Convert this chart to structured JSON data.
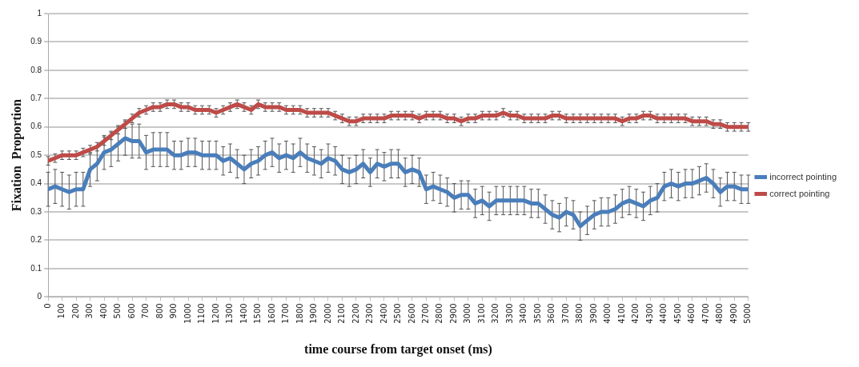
{
  "chart_data": {
    "type": "line",
    "xlabel": "time course from target onset (ms)",
    "ylabel": "Fixation  Proportion",
    "x": [
      0,
      50,
      100,
      150,
      200,
      250,
      300,
      350,
      400,
      450,
      500,
      550,
      600,
      650,
      700,
      750,
      800,
      850,
      900,
      950,
      1000,
      1050,
      1100,
      1150,
      1200,
      1250,
      1300,
      1350,
      1400,
      1450,
      1500,
      1550,
      1600,
      1650,
      1700,
      1750,
      1800,
      1850,
      1900,
      1950,
      2000,
      2050,
      2100,
      2150,
      2200,
      2250,
      2300,
      2350,
      2400,
      2450,
      2500,
      2550,
      2600,
      2650,
      2700,
      2750,
      2800,
      2850,
      2900,
      2950,
      3000,
      3050,
      3100,
      3150,
      3200,
      3250,
      3300,
      3350,
      3400,
      3450,
      3500,
      3550,
      3600,
      3650,
      3700,
      3750,
      3800,
      3850,
      3900,
      3950,
      4000,
      4050,
      4100,
      4150,
      4200,
      4250,
      4300,
      4350,
      4400,
      4450,
      4500,
      4550,
      4600,
      4650,
      4700,
      4750,
      4800,
      4850,
      4900,
      4950,
      5000
    ],
    "series": [
      {
        "name": "incorrect pointing",
        "color": "#4a7ebb",
        "values": [
          0.38,
          0.39,
          0.38,
          0.37,
          0.38,
          0.38,
          0.45,
          0.47,
          0.51,
          0.52,
          0.54,
          0.56,
          0.55,
          0.55,
          0.51,
          0.52,
          0.52,
          0.52,
          0.5,
          0.5,
          0.51,
          0.51,
          0.5,
          0.5,
          0.5,
          0.48,
          0.49,
          0.47,
          0.45,
          0.47,
          0.48,
          0.5,
          0.51,
          0.49,
          0.5,
          0.49,
          0.51,
          0.49,
          0.48,
          0.47,
          0.49,
          0.48,
          0.45,
          0.44,
          0.45,
          0.47,
          0.44,
          0.47,
          0.46,
          0.47,
          0.47,
          0.44,
          0.45,
          0.44,
          0.38,
          0.39,
          0.38,
          0.37,
          0.35,
          0.36,
          0.36,
          0.33,
          0.34,
          0.32,
          0.34,
          0.34,
          0.34,
          0.34,
          0.34,
          0.33,
          0.33,
          0.31,
          0.29,
          0.28,
          0.3,
          0.29,
          0.25,
          0.27,
          0.29,
          0.3,
          0.3,
          0.31,
          0.33,
          0.34,
          0.33,
          0.32,
          0.34,
          0.35,
          0.39,
          0.4,
          0.39,
          0.4,
          0.4,
          0.41,
          0.42,
          0.4,
          0.37,
          0.39,
          0.39,
          0.38,
          0.38
        ],
        "errors": [
          0.06,
          0.06,
          0.06,
          0.06,
          0.06,
          0.06,
          0.06,
          0.06,
          0.06,
          0.06,
          0.06,
          0.06,
          0.06,
          0.06,
          0.06,
          0.06,
          0.06,
          0.06,
          0.05,
          0.05,
          0.05,
          0.05,
          0.05,
          0.05,
          0.05,
          0.05,
          0.05,
          0.05,
          0.05,
          0.05,
          0.05,
          0.05,
          0.05,
          0.05,
          0.05,
          0.05,
          0.05,
          0.05,
          0.05,
          0.05,
          0.05,
          0.05,
          0.05,
          0.05,
          0.05,
          0.05,
          0.05,
          0.05,
          0.05,
          0.05,
          0.05,
          0.05,
          0.05,
          0.05,
          0.05,
          0.05,
          0.05,
          0.05,
          0.05,
          0.05,
          0.05,
          0.05,
          0.05,
          0.05,
          0.05,
          0.05,
          0.05,
          0.05,
          0.05,
          0.05,
          0.05,
          0.05,
          0.05,
          0.05,
          0.05,
          0.05,
          0.05,
          0.05,
          0.05,
          0.05,
          0.05,
          0.05,
          0.05,
          0.05,
          0.05,
          0.05,
          0.05,
          0.05,
          0.05,
          0.05,
          0.05,
          0.05,
          0.05,
          0.05,
          0.05,
          0.05,
          0.05,
          0.05,
          0.05,
          0.05,
          0.05
        ]
      },
      {
        "name": "correct pointing",
        "color": "#be4b48",
        "values": [
          0.48,
          0.49,
          0.5,
          0.5,
          0.5,
          0.51,
          0.52,
          0.53,
          0.55,
          0.57,
          0.59,
          0.61,
          0.63,
          0.65,
          0.66,
          0.67,
          0.67,
          0.68,
          0.68,
          0.67,
          0.67,
          0.66,
          0.66,
          0.66,
          0.65,
          0.66,
          0.67,
          0.68,
          0.67,
          0.66,
          0.68,
          0.67,
          0.67,
          0.67,
          0.66,
          0.66,
          0.66,
          0.65,
          0.65,
          0.65,
          0.65,
          0.64,
          0.63,
          0.62,
          0.62,
          0.63,
          0.63,
          0.63,
          0.63,
          0.64,
          0.64,
          0.64,
          0.64,
          0.63,
          0.64,
          0.64,
          0.64,
          0.63,
          0.63,
          0.62,
          0.63,
          0.63,
          0.64,
          0.64,
          0.64,
          0.65,
          0.64,
          0.64,
          0.63,
          0.63,
          0.63,
          0.63,
          0.64,
          0.64,
          0.63,
          0.63,
          0.63,
          0.63,
          0.63,
          0.63,
          0.63,
          0.63,
          0.62,
          0.63,
          0.63,
          0.64,
          0.64,
          0.63,
          0.63,
          0.63,
          0.63,
          0.63,
          0.62,
          0.62,
          0.62,
          0.61,
          0.61,
          0.6,
          0.6,
          0.6,
          0.6
        ],
        "errors": [
          0.015,
          0.015,
          0.015,
          0.015,
          0.015,
          0.015,
          0.015,
          0.015,
          0.015,
          0.015,
          0.015,
          0.015,
          0.015,
          0.015,
          0.015,
          0.015,
          0.015,
          0.015,
          0.015,
          0.015,
          0.015,
          0.015,
          0.015,
          0.015,
          0.015,
          0.015,
          0.015,
          0.015,
          0.015,
          0.015,
          0.015,
          0.015,
          0.015,
          0.015,
          0.015,
          0.015,
          0.015,
          0.015,
          0.015,
          0.015,
          0.015,
          0.015,
          0.015,
          0.015,
          0.015,
          0.015,
          0.015,
          0.015,
          0.015,
          0.015,
          0.015,
          0.015,
          0.015,
          0.015,
          0.015,
          0.015,
          0.015,
          0.015,
          0.015,
          0.015,
          0.015,
          0.015,
          0.015,
          0.015,
          0.015,
          0.015,
          0.015,
          0.015,
          0.015,
          0.015,
          0.015,
          0.015,
          0.015,
          0.015,
          0.015,
          0.015,
          0.015,
          0.015,
          0.015,
          0.015,
          0.015,
          0.015,
          0.015,
          0.015,
          0.015,
          0.015,
          0.015,
          0.015,
          0.015,
          0.015,
          0.015,
          0.015,
          0.015,
          0.015,
          0.015,
          0.015,
          0.015,
          0.015,
          0.015,
          0.015,
          0.015
        ]
      }
    ],
    "xlim": [
      0,
      5000
    ],
    "xticks": [
      0,
      100,
      200,
      300,
      400,
      500,
      600,
      700,
      800,
      900,
      1000,
      1100,
      1200,
      1300,
      1400,
      1500,
      1600,
      1700,
      1800,
      1900,
      2000,
      2100,
      2200,
      2300,
      2400,
      2500,
      2600,
      2700,
      2800,
      2900,
      3000,
      3100,
      3200,
      3300,
      3400,
      3500,
      3600,
      3700,
      3800,
      3900,
      4000,
      4100,
      4200,
      4300,
      4400,
      4500,
      4600,
      4700,
      4800,
      4900,
      5000
    ],
    "ylim": [
      0,
      1
    ],
    "yticks": [
      0,
      0.1,
      0.2,
      0.3,
      0.4,
      0.5,
      0.6,
      0.7,
      0.8,
      0.9,
      1
    ],
    "grid": "y",
    "legend": "right",
    "marker": "none",
    "line_style": "solid"
  }
}
